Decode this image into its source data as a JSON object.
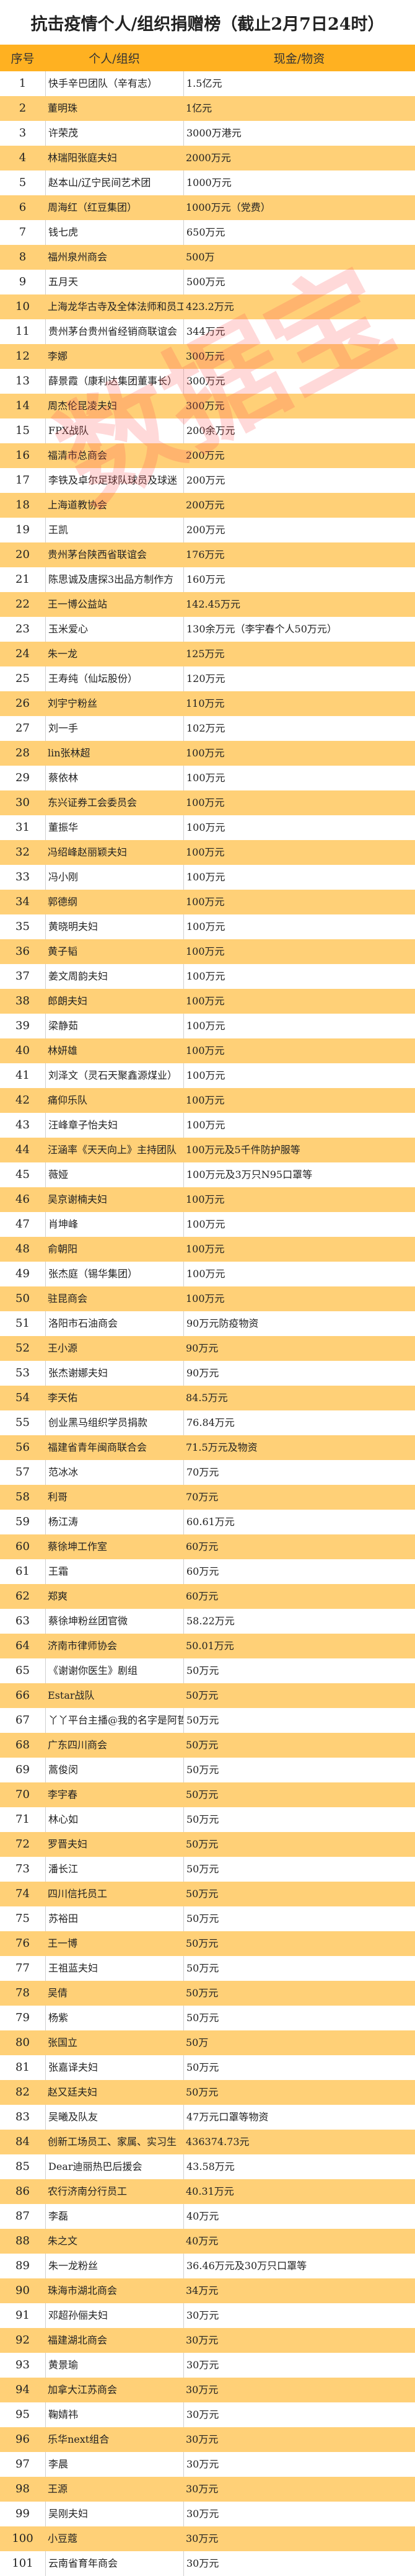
{
  "title": "抗击疫情个人/组织捐赠榜（截止2月7日24时）",
  "watermark": "数据宝",
  "colors": {
    "header": "#FFB121",
    "stripe": "#FFD077",
    "watermark": "#FF5050"
  },
  "columns": [
    "序号",
    "个人/组织",
    "现金/物资"
  ],
  "rows": [
    [
      "1",
      "快手辛巴团队（辛有志）",
      "1.5亿元"
    ],
    [
      "2",
      "董明珠",
      "1亿元"
    ],
    [
      "3",
      "许荣茂",
      "3000万港元"
    ],
    [
      "4",
      "林瑞阳张庭夫妇",
      "2000万元"
    ],
    [
      "5",
      "赵本山/辽宁民间艺术团",
      "1000万元"
    ],
    [
      "6",
      "周海红（红豆集团）",
      "1000万元（党费）"
    ],
    [
      "7",
      "钱七虎",
      "650万元"
    ],
    [
      "8",
      "福州泉州商会",
      "500万"
    ],
    [
      "9",
      "五月天",
      "500万元"
    ],
    [
      "10",
      "上海龙华古寺及全体法师和员工",
      "423.2万元"
    ],
    [
      "11",
      "贵州茅台贵州省经销商联谊会",
      "344万元"
    ],
    [
      "12",
      "李娜",
      "300万元"
    ],
    [
      "13",
      "薛景霞（康利达集团董事长）",
      "300万元"
    ],
    [
      "14",
      "周杰伦昆凌夫妇",
      "300万元"
    ],
    [
      "15",
      "FPX战队",
      "200余万元"
    ],
    [
      "16",
      "福清市总商会",
      "200万元"
    ],
    [
      "17",
      "李铁及卓尔足球队球员及球迷",
      "200万元"
    ],
    [
      "18",
      "上海道教协会",
      "200万元"
    ],
    [
      "19",
      "王凯",
      "200万元"
    ],
    [
      "20",
      "贵州茅台陕西省联谊会",
      "176万元"
    ],
    [
      "21",
      "陈思诚及唐探3出品方制作方",
      "160万元"
    ],
    [
      "22",
      "王一博公益站",
      "142.45万元"
    ],
    [
      "23",
      "玉米爱心",
      "130余万元（李宇春个人50万元）"
    ],
    [
      "24",
      "朱一龙",
      "125万元"
    ],
    [
      "25",
      "王寿纯（仙坛股份）",
      "120万元"
    ],
    [
      "26",
      "刘宇宁粉丝",
      "110万元"
    ],
    [
      "27",
      "刘一手",
      "102万元"
    ],
    [
      "28",
      "lin张林超",
      "100万元"
    ],
    [
      "29",
      "蔡依林",
      "100万元"
    ],
    [
      "30",
      "东兴证券工会委员会",
      "100万元"
    ],
    [
      "31",
      "董振华",
      "100万元"
    ],
    [
      "32",
      "冯绍峰赵丽颖夫妇",
      "100万元"
    ],
    [
      "33",
      "冯小刚",
      "100万元"
    ],
    [
      "34",
      "郭德纲",
      "100万元"
    ],
    [
      "35",
      "黄晓明夫妇",
      "100万元"
    ],
    [
      "36",
      "黄子韬",
      "100万元"
    ],
    [
      "37",
      "姜文周韵夫妇",
      "100万元"
    ],
    [
      "38",
      "郎朗夫妇",
      "100万元"
    ],
    [
      "39",
      "梁静茹",
      "100万元"
    ],
    [
      "40",
      "林妍雄",
      "100万元"
    ],
    [
      "41",
      "刘泽文（灵石天聚鑫源煤业）",
      "100万元"
    ],
    [
      "42",
      "痛仰乐队",
      "100万元"
    ],
    [
      "43",
      "汪峰章子怡夫妇",
      "100万元"
    ],
    [
      "44",
      "汪涵率《天天向上》主持团队",
      "100万元及5千件防护服等"
    ],
    [
      "45",
      "薇娅",
      "100万元及3万只N95口罩等"
    ],
    [
      "46",
      "吴京谢楠夫妇",
      "100万元"
    ],
    [
      "47",
      "肖坤峰",
      "100万元"
    ],
    [
      "48",
      "俞朝阳",
      "100万元"
    ],
    [
      "49",
      "张杰庭（锡华集团）",
      "100万元"
    ],
    [
      "50",
      "驻昆商会",
      "100万元"
    ],
    [
      "51",
      "洛阳市石油商会",
      "90万元防疫物资"
    ],
    [
      "52",
      "王小源",
      "90万元"
    ],
    [
      "53",
      "张杰谢娜夫妇",
      "90万元"
    ],
    [
      "54",
      "李天佑",
      "84.5万元"
    ],
    [
      "55",
      "创业黑马组织学员捐款",
      "76.84万元"
    ],
    [
      "56",
      "福建省青年闽商联合会",
      "71.5万元及物资"
    ],
    [
      "57",
      "范冰冰",
      "70万元"
    ],
    [
      "58",
      "利哥",
      "70万元"
    ],
    [
      "59",
      "杨江涛",
      "60.61万元"
    ],
    [
      "60",
      "蔡徐坤工作室",
      "60万元"
    ],
    [
      "61",
      "王霜",
      "60万元"
    ],
    [
      "62",
      "郑爽",
      "60万元"
    ],
    [
      "63",
      "蔡徐坤粉丝团官微",
      "58.22万元"
    ],
    [
      "64",
      "济南市律师协会",
      "50.01万元"
    ],
    [
      "65",
      "《谢谢你医生》剧组",
      "50万元"
    ],
    [
      "66",
      "Estar战队",
      "50万元"
    ],
    [
      "67",
      "丫丫平台主播@我的名字是阿哲",
      "50万元"
    ],
    [
      "68",
      "广东四川商会",
      "50万元"
    ],
    [
      "69",
      "蒿俊闵",
      "50万元"
    ],
    [
      "70",
      "李宇春",
      "50万元"
    ],
    [
      "71",
      "林心如",
      "50万元"
    ],
    [
      "72",
      "罗晋夫妇",
      "50万元"
    ],
    [
      "73",
      "潘长江",
      "50万元"
    ],
    [
      "74",
      "四川信托员工",
      "50万元"
    ],
    [
      "75",
      "苏裕田",
      "50万元"
    ],
    [
      "76",
      "王一博",
      "50万元"
    ],
    [
      "77",
      "王祖蓝夫妇",
      "50万元"
    ],
    [
      "78",
      "吴倩",
      "50万元"
    ],
    [
      "79",
      "杨紫",
      "50万元"
    ],
    [
      "80",
      "张国立",
      "50万"
    ],
    [
      "81",
      "张嘉译夫妇",
      "50万元"
    ],
    [
      "82",
      "赵又廷夫妇",
      "50万元"
    ],
    [
      "83",
      "吴曦及队友",
      "47万元口罩等物资"
    ],
    [
      "84",
      "创新工场员工、家属、实习生",
      "436374.73元"
    ],
    [
      "85",
      "Dear迪丽热巴后援会",
      "43.58万元"
    ],
    [
      "86",
      "农行济南分行员工",
      "40.31万元"
    ],
    [
      "87",
      "李磊",
      "40万元"
    ],
    [
      "88",
      "朱之文",
      "40万元"
    ],
    [
      "89",
      "朱一龙粉丝",
      "36.46万元及30万只口罩等"
    ],
    [
      "90",
      "珠海市湖北商会",
      "34万元"
    ],
    [
      "91",
      "邓超孙俪夫妇",
      "30万元"
    ],
    [
      "92",
      "福建湖北商会",
      "30万元"
    ],
    [
      "93",
      "黄景瑜",
      "30万元"
    ],
    [
      "94",
      "加拿大江苏商会",
      "30万元"
    ],
    [
      "95",
      "鞠婧祎",
      "30万元"
    ],
    [
      "96",
      "乐华next组合",
      "30万元"
    ],
    [
      "97",
      "李晨",
      "30万元"
    ],
    [
      "98",
      "王源",
      "30万元"
    ],
    [
      "99",
      "吴刚夫妇",
      "30万元"
    ],
    [
      "100",
      "小豆蔻",
      "30万元"
    ],
    [
      "101",
      "云南省育年商会",
      "30万元"
    ]
  ]
}
